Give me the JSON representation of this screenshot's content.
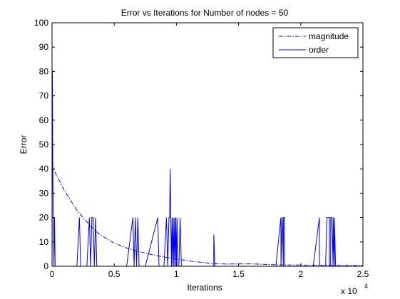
{
  "chart_data": {
    "type": "line",
    "title": "Error vs Iterations for Number of nodes = 50",
    "xlabel": "Iterations",
    "ylabel": "Error",
    "x_multiplier_text": "x 10",
    "x_multiplier_exp": "4",
    "xlim": [
      0,
      2.5
    ],
    "ylim": [
      0,
      100
    ],
    "x_ticks": [
      "0",
      "0.5",
      "1",
      "1.5",
      "2",
      "2.5"
    ],
    "y_ticks": [
      "0",
      "10",
      "20",
      "30",
      "40",
      "50",
      "60",
      "70",
      "80",
      "90",
      "100"
    ],
    "x_tick_values": [
      0,
      0.5,
      1,
      1.5,
      2,
      2.5
    ],
    "y_tick_values": [
      0,
      10,
      20,
      30,
      40,
      50,
      60,
      70,
      80,
      90,
      100
    ],
    "grid": false,
    "legend_position": "top-right",
    "series": [
      {
        "name": "magnitude",
        "style": "dash-dot",
        "color": "#0000ff",
        "x": [
          0,
          0.01,
          0.05,
          0.1,
          0.15,
          0.2,
          0.25,
          0.3,
          0.35,
          0.4,
          0.5,
          0.6,
          0.7,
          0.8,
          0.9,
          1.0,
          1.1,
          1.2,
          1.3,
          1.4,
          1.5,
          1.6,
          1.7,
          1.8,
          1.9,
          2.0,
          2.1,
          2.2,
          2.3,
          2.4,
          2.5
        ],
        "y": [
          42,
          40,
          36,
          31,
          27,
          23,
          20,
          17,
          14.5,
          12.5,
          9.5,
          7.5,
          6,
          4.8,
          3.8,
          3,
          2.2,
          1.6,
          1.1,
          0.9,
          1,
          1,
          0.8,
          0.6,
          0.5,
          0.5,
          0.4,
          0.4,
          0.3,
          0.3,
          0.3
        ]
      },
      {
        "name": "order",
        "style": "solid",
        "color": "#0000ff",
        "x": [
          0,
          0.003,
          0.006,
          0.01,
          0.013,
          0.015,
          0.02,
          0.025,
          0.03,
          0.2,
          0.22,
          0.23,
          0.24,
          0.25,
          0.27,
          0.28,
          0.3,
          0.31,
          0.32,
          0.33,
          0.34,
          0.35,
          0.36,
          0.4,
          0.6,
          0.65,
          0.66,
          0.67,
          0.68,
          0.69,
          0.7,
          0.75,
          0.85,
          0.86,
          0.87,
          0.9,
          0.92,
          0.93,
          0.94,
          0.945,
          0.95,
          0.955,
          0.96,
          0.965,
          0.97,
          0.975,
          0.98,
          0.985,
          0.99,
          0.995,
          1.0,
          1.005,
          1.01,
          1.02,
          1.03,
          1.04,
          1.05,
          1.1,
          1.3,
          1.301,
          1.31,
          1.5,
          1.8,
          1.84,
          1.841,
          1.85,
          1.851,
          1.86,
          1.861,
          1.87,
          1.871,
          1.88,
          1.881,
          1.9,
          2.1,
          2.15,
          2.151,
          2.16,
          2.2,
          2.21,
          2.211,
          2.23,
          2.231,
          2.24,
          2.241,
          2.25,
          2.26,
          2.261,
          2.27,
          2.271,
          2.28,
          2.281,
          2.3,
          2.5
        ],
        "y": [
          0,
          80,
          40,
          20,
          20,
          0,
          20,
          0,
          0,
          0,
          20,
          0,
          0,
          0,
          0,
          0,
          20,
          0,
          20,
          20,
          0,
          20,
          0,
          0,
          0,
          20,
          0,
          20,
          0,
          20,
          0,
          0,
          20,
          0,
          0,
          0,
          20,
          0,
          20,
          20,
          40,
          20,
          0,
          20,
          0,
          20,
          0,
          20,
          0,
          20,
          0,
          20,
          0,
          0,
          20,
          0,
          0,
          0,
          0,
          13,
          0,
          0,
          0,
          20,
          0,
          20,
          20,
          0,
          20,
          20,
          0,
          0,
          0,
          0,
          0,
          20,
          0,
          0,
          0,
          20,
          20,
          20,
          0,
          0,
          20,
          20,
          0,
          20,
          0,
          20,
          0,
          0,
          0,
          0
        ]
      }
    ]
  }
}
